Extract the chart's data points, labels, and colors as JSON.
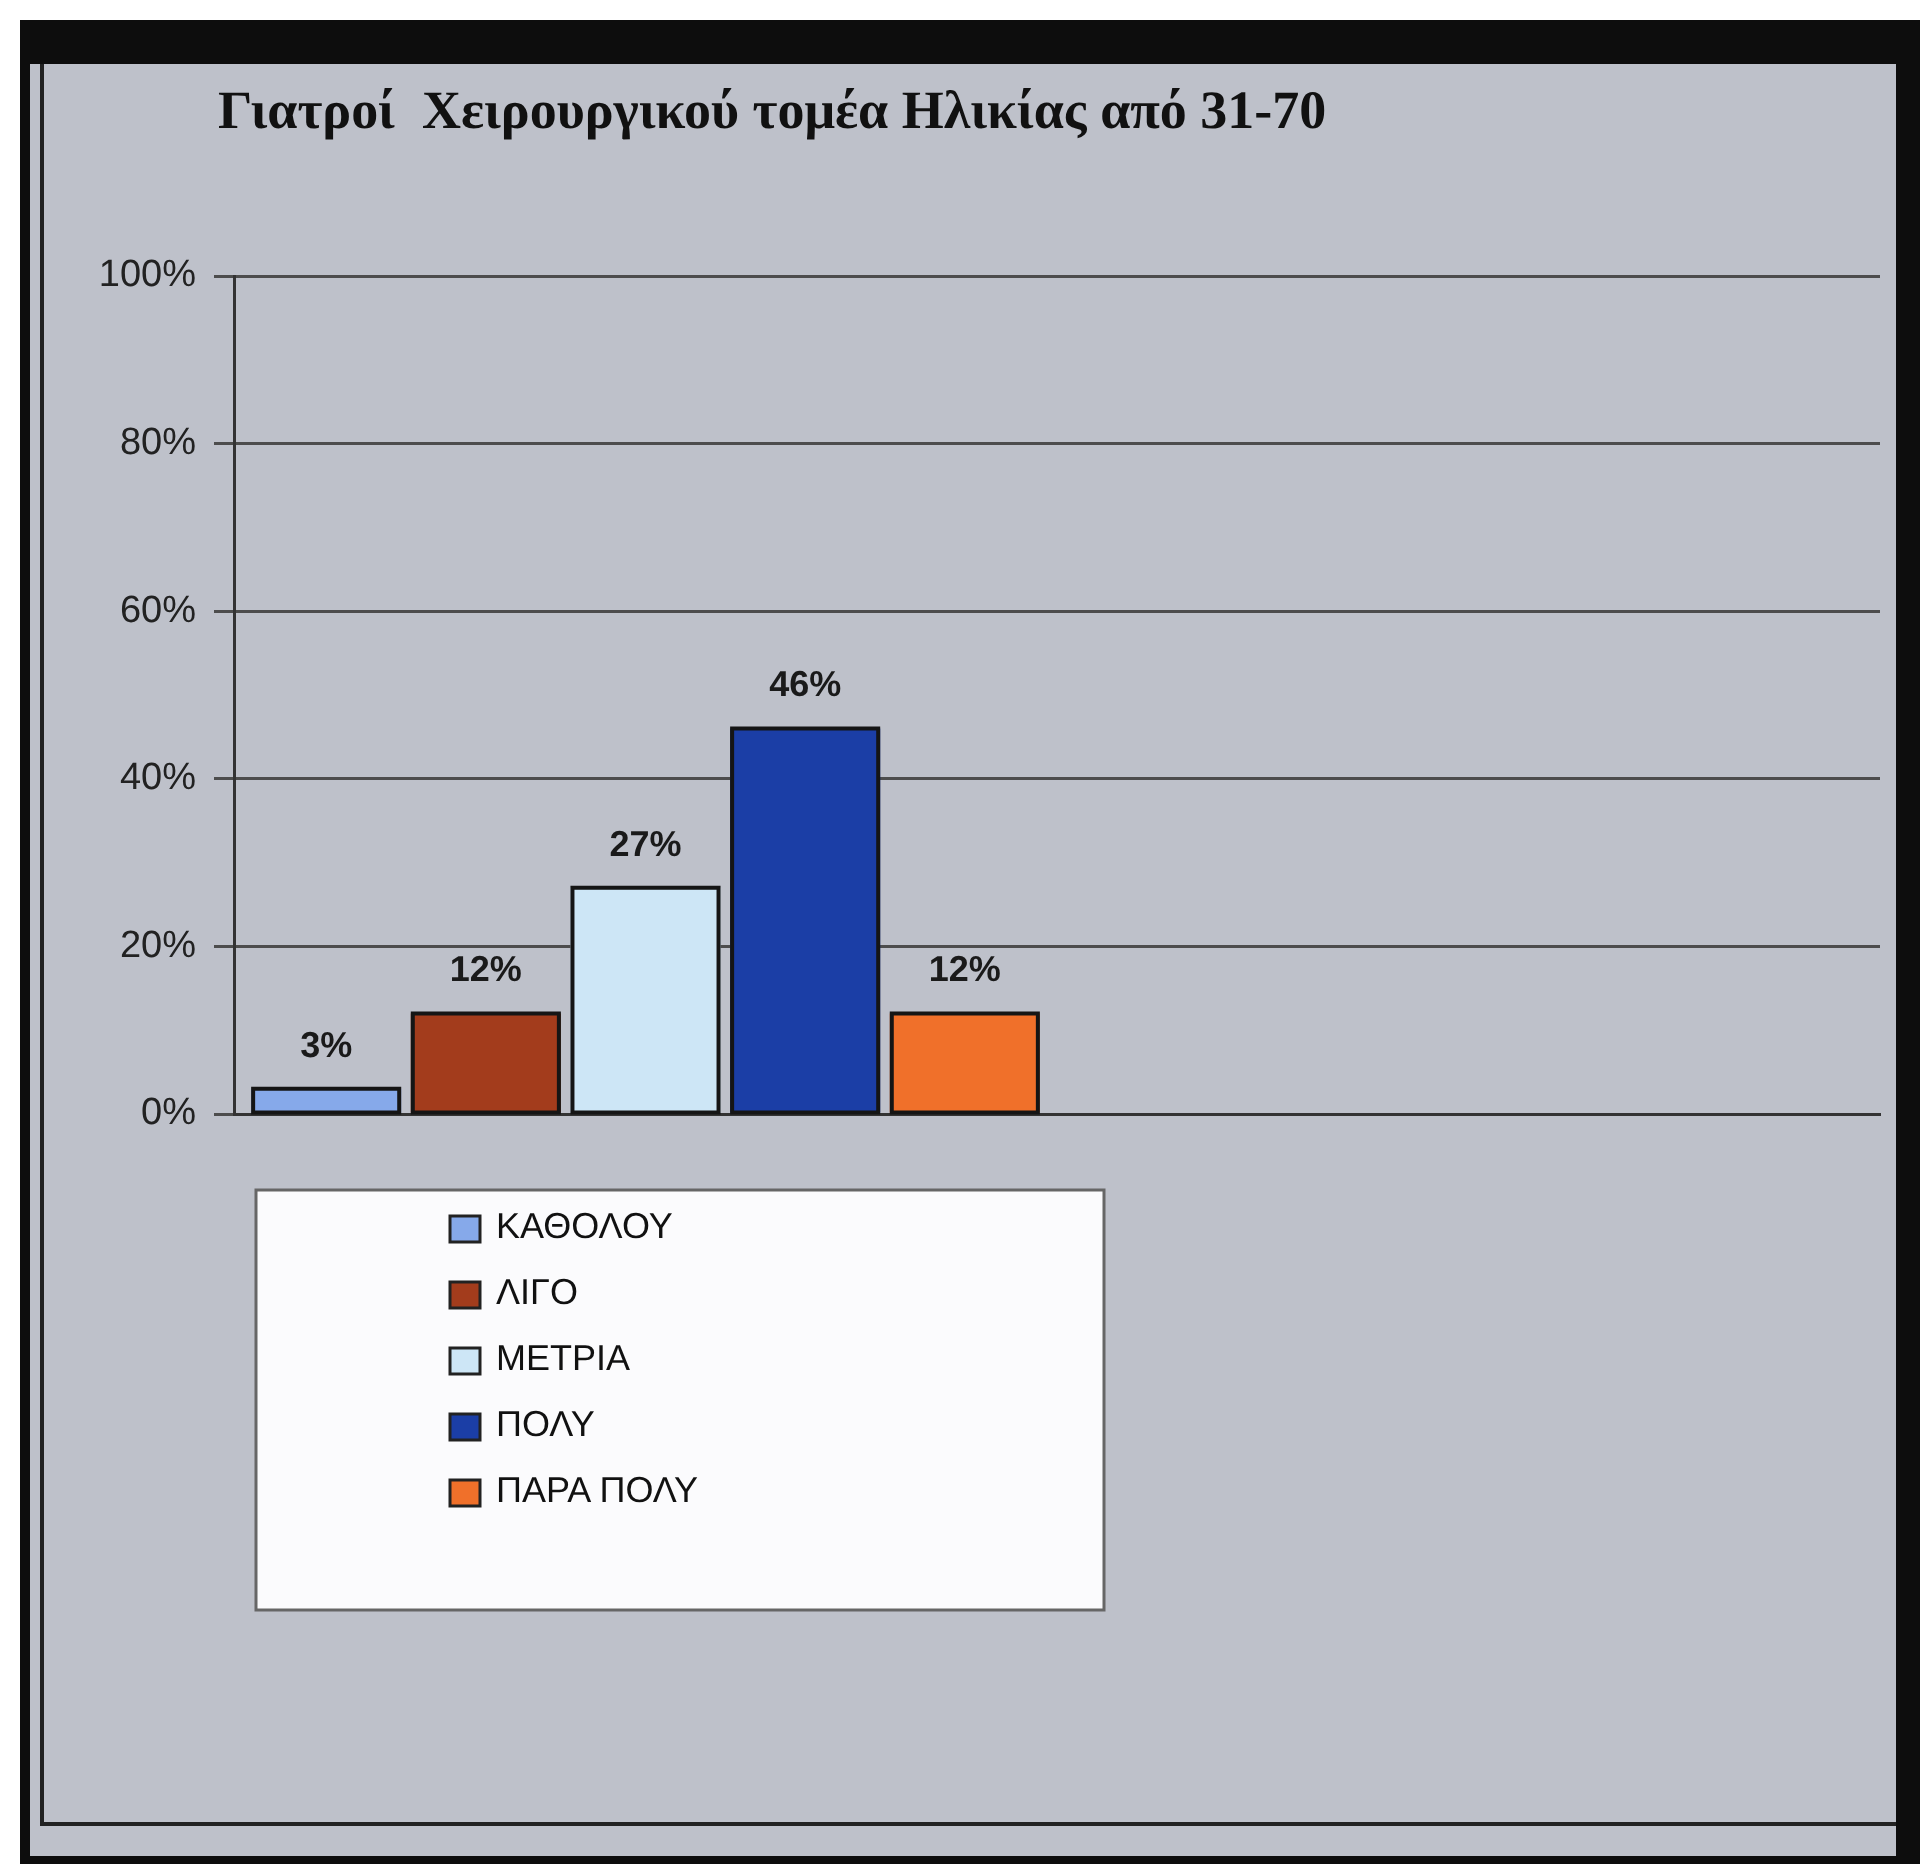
{
  "chart_data": {
    "type": "bar",
    "title": "Γιατροί  Χειρουργικού τομέα Ηλικίας από 31-70",
    "categories": [
      null,
      null
    ],
    "series": [
      {
        "name": "ΚΑΘΟΛΟΥ",
        "color": "#86a9ea",
        "values": [
          3,
          null
        ],
        "value_labels": [
          "3%",
          null
        ]
      },
      {
        "name": "ΛΙΓΟ",
        "color": "#a33c1c",
        "values": [
          12,
          null
        ],
        "value_labels": [
          "12%",
          null
        ]
      },
      {
        "name": "ΜΕΤΡΙΑ",
        "color": "#cde6f6",
        "values": [
          27,
          null
        ],
        "value_labels": [
          "27%",
          null
        ]
      },
      {
        "name": "ΠΟΛΥ",
        "color": "#1b3ea6",
        "values": [
          46,
          null
        ],
        "value_labels": [
          "46%",
          null
        ]
      },
      {
        "name": "ΠΑΡΑ ΠΟΛΥ",
        "color": "#f0702a",
        "values": [
          12,
          null
        ],
        "value_labels": [
          "12%",
          null
        ]
      }
    ],
    "ylim": [
      0,
      100
    ],
    "yticks": [
      {
        "value": 0,
        "label": "0%"
      },
      {
        "value": 20,
        "label": "20%"
      },
      {
        "value": 40,
        "label": "40%"
      },
      {
        "value": 60,
        "label": "60%"
      },
      {
        "value": 80,
        "label": "80%"
      },
      {
        "value": 100,
        "label": "100%"
      }
    ],
    "grid": "y",
    "legend": "bottom left",
    "tick_labels": "y"
  }
}
